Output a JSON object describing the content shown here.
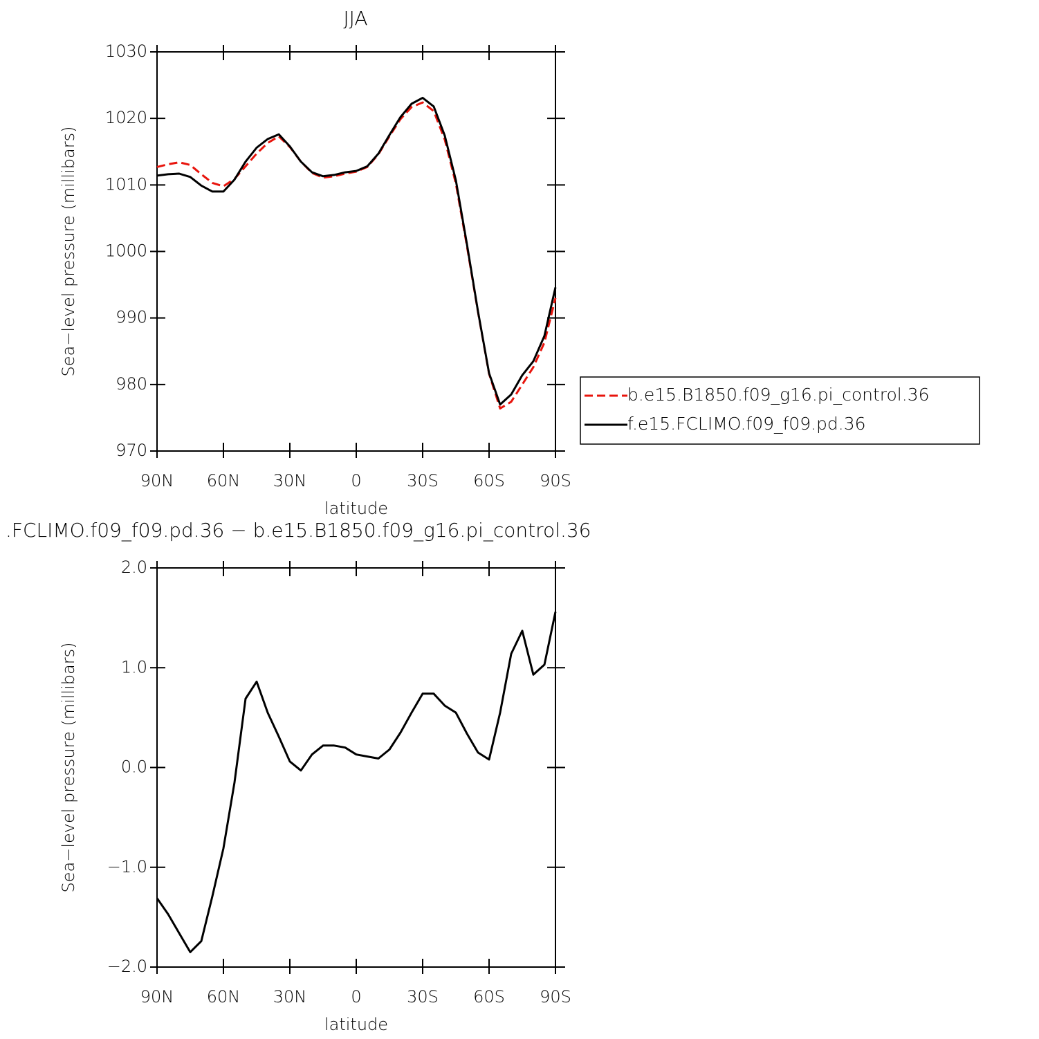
{
  "chart_data": [
    {
      "type": "line",
      "title": "JJA",
      "xlabel": "latitude",
      "ylabel": "Sea−level pressure (millibars)",
      "x": [
        90,
        85,
        80,
        75,
        70,
        65,
        60,
        55,
        50,
        45,
        40,
        35,
        30,
        25,
        20,
        15,
        10,
        5,
        0,
        -5,
        -10,
        -15,
        -20,
        -25,
        -30,
        -35,
        -40,
        -45,
        -50,
        -55,
        -60,
        -65,
        -70,
        -75,
        -80,
        -85,
        -90
      ],
      "series": [
        {
          "name": "b.e15.B1850.f09_g16.pi_control.36",
          "color": "#e8140c",
          "linestyle": "dashed",
          "values": [
            1012.7,
            1013.1,
            1013.4,
            1013.0,
            1011.6,
            1010.3,
            1009.8,
            1010.9,
            1012.8,
            1014.7,
            1016.3,
            1017.3,
            1015.7,
            1013.5,
            1011.8,
            1011.1,
            1011.3,
            1011.7,
            1012.0,
            1012.7,
            1014.6,
            1017.3,
            1019.9,
            1021.7,
            1022.4,
            1021.1,
            1016.8,
            1010.2,
            1000.8,
            990.9,
            981.6,
            976.4,
            977.4,
            980.0,
            982.6,
            986.3,
            993.0
          ]
        },
        {
          "name": "f.e15.FCLIMO.f09_f09.pd.36",
          "color": "#000000",
          "linestyle": "solid",
          "values": [
            1011.4,
            1011.6,
            1011.7,
            1011.2,
            1009.9,
            1009.0,
            1009.0,
            1010.8,
            1013.5,
            1015.6,
            1016.9,
            1017.6,
            1015.8,
            1013.5,
            1011.9,
            1011.3,
            1011.5,
            1011.9,
            1012.1,
            1012.8,
            1014.7,
            1017.5,
            1020.2,
            1022.2,
            1023.1,
            1021.8,
            1017.4,
            1010.7,
            1001.1,
            991.0,
            981.7,
            977.0,
            978.5,
            981.4,
            983.5,
            987.3,
            994.6
          ]
        }
      ],
      "xlim": [
        90,
        -90
      ],
      "xticks": [
        {
          "value": 90,
          "label": "90N"
        },
        {
          "value": 60,
          "label": "60N"
        },
        {
          "value": 30,
          "label": "30N"
        },
        0,
        {
          "value": -30,
          "label": "30S"
        },
        {
          "value": -60,
          "label": "60S"
        },
        {
          "value": -90,
          "label": "90S"
        }
      ],
      "ylim": [
        970,
        1030
      ],
      "yticks": [
        970,
        980,
        990,
        1000,
        1010,
        1020,
        1030
      ],
      "legend": "right"
    },
    {
      "type": "line",
      "title": ".FCLIMO.f09_f09.pd.36 − b.e15.B1850.f09_g16.pi_control.36",
      "xlabel": "latitude",
      "ylabel": "Sea−level pressure (millibars)",
      "x": [
        90,
        85,
        80,
        75,
        70,
        65,
        60,
        55,
        50,
        45,
        40,
        35,
        30,
        25,
        20,
        15,
        10,
        5,
        0,
        -5,
        -10,
        -15,
        -20,
        -25,
        -30,
        -35,
        -40,
        -45,
        -50,
        -55,
        -60,
        -65,
        -70,
        -75,
        -80,
        -85,
        -90
      ],
      "series": [
        {
          "color": "#000000",
          "linestyle": "solid",
          "values": [
            -1.31,
            -1.47,
            -1.66,
            -1.85,
            -1.74,
            -1.29,
            -0.81,
            -0.15,
            0.69,
            0.86,
            0.55,
            0.31,
            0.06,
            -0.03,
            0.13,
            0.22,
            0.22,
            0.2,
            0.13,
            0.11,
            0.09,
            0.18,
            0.35,
            0.55,
            0.74,
            0.74,
            0.62,
            0.55,
            0.34,
            0.15,
            0.08,
            0.55,
            1.14,
            1.37,
            0.93,
            1.03,
            1.56
          ]
        }
      ],
      "xlim": [
        90,
        -90
      ],
      "xticks": [
        {
          "value": 90,
          "label": "90N"
        },
        {
          "value": 60,
          "label": "60N"
        },
        {
          "value": 30,
          "label": "30N"
        },
        0,
        {
          "value": -30,
          "label": "30S"
        },
        {
          "value": -60,
          "label": "60S"
        },
        {
          "value": -90,
          "label": "90S"
        }
      ],
      "ylim": [
        -2,
        2
      ],
      "yticks": [
        {
          "value": -2,
          "label": "−2.0"
        },
        {
          "value": -1,
          "label": "−1.0"
        },
        {
          "value": 0,
          "label": "0.0"
        },
        {
          "value": 1,
          "label": "1.0"
        },
        {
          "value": 2,
          "label": "2.0"
        }
      ]
    }
  ]
}
